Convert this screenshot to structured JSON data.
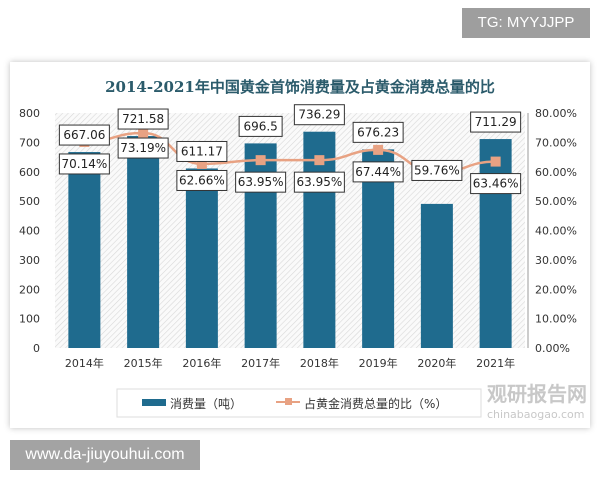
{
  "watermark_top": "TG: MYYJJPP",
  "watermark_bottom": "www.da-jiuyouhui.com",
  "logo": {
    "text": "观研报告网",
    "url_text": "chinabaogao.com"
  },
  "chart_data": {
    "type": "bar+line",
    "title": "2014-2021年中国黄金首饰消费量及占黄金消费总量的比",
    "categories": [
      "2014年",
      "2015年",
      "2016年",
      "2017年",
      "2018年",
      "2019年",
      "2020年",
      "2021年"
    ],
    "series": [
      {
        "name": "消费量（吨）",
        "type": "bar",
        "axis": "left",
        "color": "#1f6b8e",
        "values": [
          667.06,
          721.58,
          611.17,
          696.5,
          736.29,
          676.23,
          490.58,
          711.29
        ],
        "labels": [
          "667.06",
          "721.58",
          "611.17",
          "696.5",
          "736.29",
          "676.23",
          "",
          "711.29"
        ]
      },
      {
        "name": "占黄金消费总量的比（%）",
        "type": "line",
        "axis": "right",
        "color": "#e8a283",
        "values": [
          70.14,
          73.19,
          62.66,
          63.95,
          63.95,
          67.44,
          59.76,
          63.46
        ],
        "labels": [
          "70.14%",
          "73.19%",
          "62.66%",
          "63.95%",
          "63.95%",
          "67.44%",
          "59.76%",
          "63.46%"
        ]
      }
    ],
    "y_left": {
      "min": 0,
      "max": 800,
      "ticks": [
        "0",
        "100",
        "200",
        "300",
        "400",
        "500",
        "600",
        "700",
        "800"
      ]
    },
    "y_right": {
      "min": 0,
      "max": 80,
      "ticks": [
        "0.00%",
        "10.00%",
        "20.00%",
        "30.00%",
        "40.00%",
        "50.00%",
        "60.00%",
        "70.00%",
        "80.00%"
      ]
    },
    "legend": "bottom",
    "grid": false
  }
}
